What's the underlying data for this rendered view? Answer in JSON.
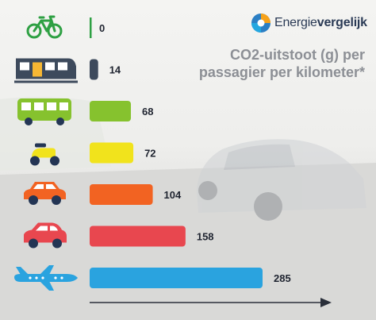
{
  "brand": {
    "name_part1": "Energie",
    "name_part2": "vergelijk"
  },
  "chart_data": {
    "type": "bar",
    "orientation": "horizontal",
    "title_line1": "CO2-uitstoot (g) per",
    "title_line2": "passagier per kilometer*",
    "categories": [
      "bicycle",
      "train",
      "bus",
      "scooter",
      "car",
      "small-car",
      "airplane"
    ],
    "icons": [
      "bicycle-icon",
      "train-icon",
      "bus-icon",
      "scooter-icon",
      "car-icon",
      "small-car-icon",
      "airplane-icon"
    ],
    "values": [
      0,
      14,
      68,
      72,
      104,
      158,
      285
    ],
    "value_labels": [
      "0",
      "14",
      "68",
      "72",
      "104",
      "158",
      "285"
    ],
    "colors": [
      "#2ea043",
      "#3d4a5c",
      "#86c22e",
      "#f1e31c",
      "#f26322",
      "#e8474f",
      "#2aa3df"
    ],
    "xlim": [
      0,
      285
    ],
    "axis": "arrow"
  },
  "colors": {
    "title": "#8c8f95",
    "icon_navy": "#233554",
    "axis": "#2a2f3a"
  }
}
